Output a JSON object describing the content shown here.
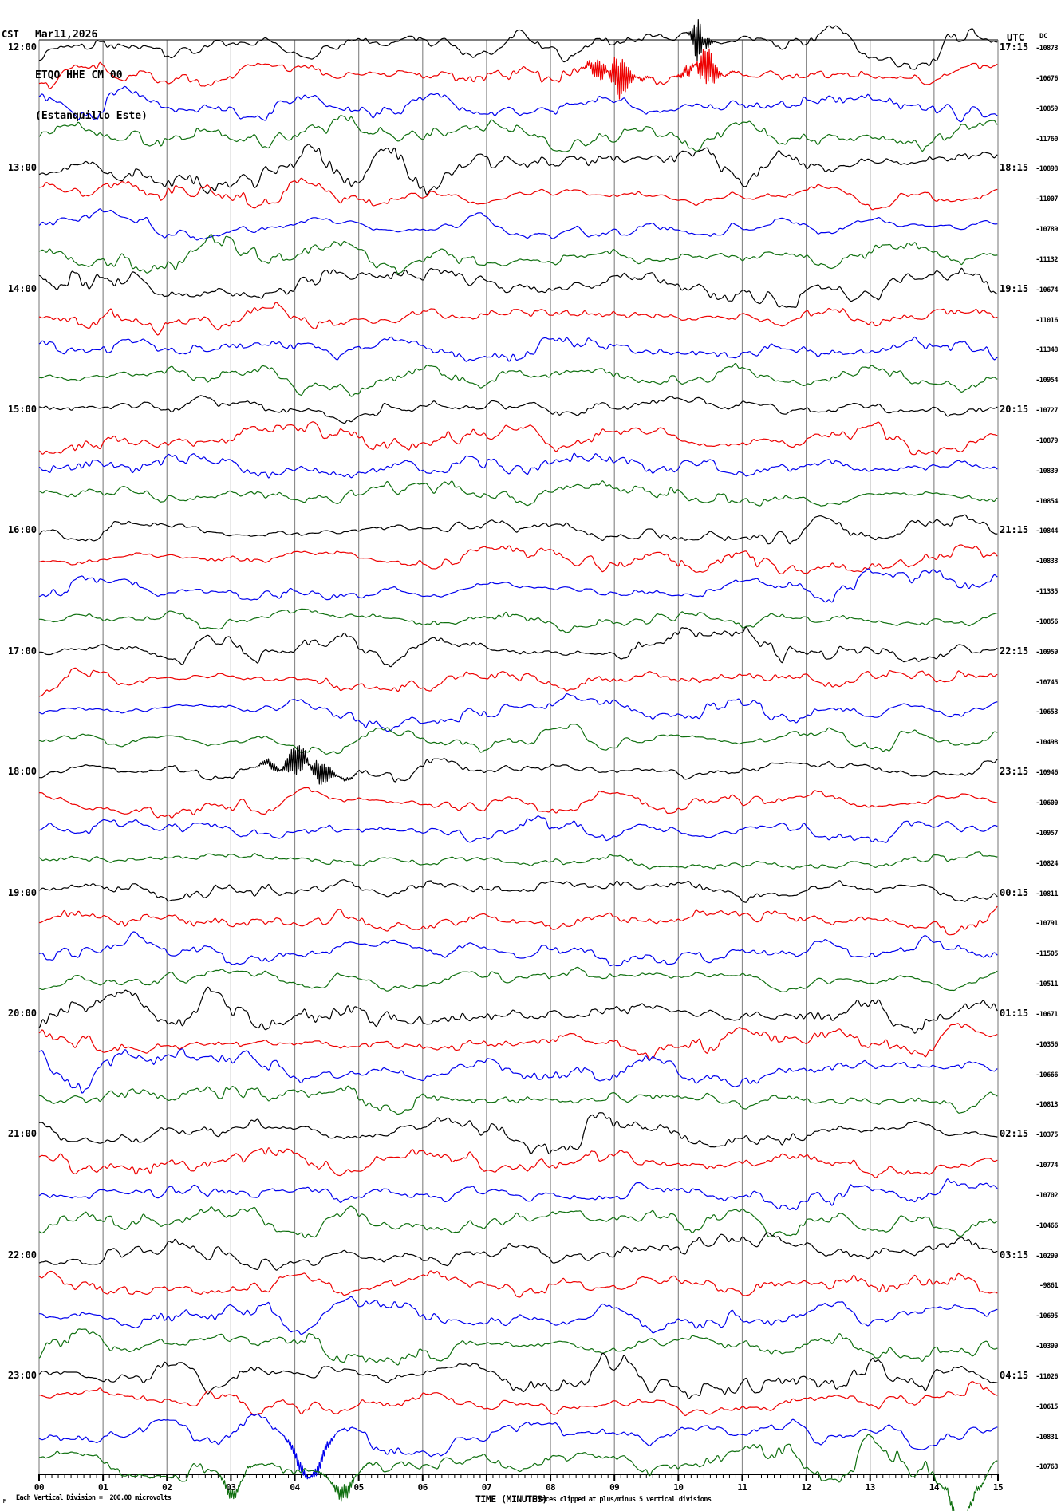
{
  "header": {
    "date": "Mar11,2026",
    "station_code": "ETQO HHE CM 00",
    "station_name": "(Estanquillo Este)",
    "left_timezone": "CST",
    "right_timezone": "UTC",
    "dc_column_label": "DC"
  },
  "footer": {
    "marker_glyph": "M",
    "scale_note": "Each Vertical Division =  200.00 microvolts",
    "axis_title": "TIME (MINUTES)",
    "clip_note": "Traces clipped at plus/minus 5 vertical divisions"
  },
  "colors": {
    "black": "#000000",
    "red": "#ee0000",
    "blue": "#0000ee",
    "green": "#107010",
    "grid": "#8c8c8c",
    "axis": "#000000"
  },
  "chart_data": {
    "type": "line",
    "subtype": "helicorder-seismogram",
    "title": "ETQO HHE CM 00 (Estanquillo Este) Mar11,2026",
    "xlabel": "TIME (MINUTES)",
    "x_range_minutes": [
      0,
      15
    ],
    "minutes_per_row": 15,
    "x_ticks": [
      "00",
      "01",
      "02",
      "03",
      "04",
      "05",
      "06",
      "07",
      "08",
      "09",
      "10",
      "11",
      "12",
      "13",
      "14",
      "15"
    ],
    "grid": "vertical-minute-lines",
    "trace_color_cycle": [
      "black",
      "red",
      "blue",
      "green"
    ],
    "rows": [
      {
        "cst": "12:00",
        "utc": "17:15",
        "dc": "-10873",
        "color": "black",
        "amp": 1.0
      },
      {
        "cst": "",
        "utc": "",
        "dc": "-10676",
        "color": "red",
        "amp": 1.0
      },
      {
        "cst": "",
        "utc": "",
        "dc": "-10859",
        "color": "blue",
        "amp": 1.0
      },
      {
        "cst": "",
        "utc": "",
        "dc": "-11760",
        "color": "green",
        "amp": 1.1
      },
      {
        "cst": "13:00",
        "utc": "18:15",
        "dc": "-10898",
        "color": "black",
        "amp": 1.35
      },
      {
        "cst": "",
        "utc": "",
        "dc": "-11007",
        "color": "red",
        "amp": 1.2
      },
      {
        "cst": "",
        "utc": "",
        "dc": "-10789",
        "color": "blue",
        "amp": 1.0
      },
      {
        "cst": "",
        "utc": "",
        "dc": "-11132",
        "color": "green",
        "amp": 1.1
      },
      {
        "cst": "14:00",
        "utc": "19:15",
        "dc": "-10674",
        "color": "black",
        "amp": 1.45
      },
      {
        "cst": "",
        "utc": "",
        "dc": "-11016",
        "color": "red",
        "amp": 1.0
      },
      {
        "cst": "",
        "utc": "",
        "dc": "-11348",
        "color": "blue",
        "amp": 0.9
      },
      {
        "cst": "",
        "utc": "",
        "dc": "-10954",
        "color": "green",
        "amp": 0.9
      },
      {
        "cst": "15:00",
        "utc": "20:15",
        "dc": "-10727",
        "color": "black",
        "amp": 1.1
      },
      {
        "cst": "",
        "utc": "",
        "dc": "-10879",
        "color": "red",
        "amp": 1.0
      },
      {
        "cst": "",
        "utc": "",
        "dc": "-10839",
        "color": "blue",
        "amp": 0.9
      },
      {
        "cst": "",
        "utc": "",
        "dc": "-10854",
        "color": "green",
        "amp": 0.9
      },
      {
        "cst": "16:00",
        "utc": "21:15",
        "dc": "-10844",
        "color": "black",
        "amp": 1.0
      },
      {
        "cst": "",
        "utc": "",
        "dc": "-10833",
        "color": "red",
        "amp": 0.9
      },
      {
        "cst": "",
        "utc": "",
        "dc": "-11335",
        "color": "blue",
        "amp": 1.0
      },
      {
        "cst": "",
        "utc": "",
        "dc": "-10856",
        "color": "green",
        "amp": 1.0
      },
      {
        "cst": "17:00",
        "utc": "22:15",
        "dc": "-10959",
        "color": "black",
        "amp": 1.1
      },
      {
        "cst": "",
        "utc": "",
        "dc": "-10745",
        "color": "red",
        "amp": 0.85
      },
      {
        "cst": "",
        "utc": "",
        "dc": "-10653",
        "color": "blue",
        "amp": 0.9
      },
      {
        "cst": "",
        "utc": "",
        "dc": "-10498",
        "color": "green",
        "amp": 0.9
      },
      {
        "cst": "18:00",
        "utc": "23:15",
        "dc": "-10946",
        "color": "black",
        "amp": 1.25
      },
      {
        "cst": "",
        "utc": "",
        "dc": "-10600",
        "color": "red",
        "amp": 1.0
      },
      {
        "cst": "",
        "utc": "",
        "dc": "-10957",
        "color": "blue",
        "amp": 0.85
      },
      {
        "cst": "",
        "utc": "",
        "dc": "-10824",
        "color": "green",
        "amp": 0.85
      },
      {
        "cst": "19:00",
        "utc": "00:15",
        "dc": "-10811",
        "color": "black",
        "amp": 1.0
      },
      {
        "cst": "",
        "utc": "",
        "dc": "-10791",
        "color": "red",
        "amp": 1.0
      },
      {
        "cst": "",
        "utc": "",
        "dc": "-11505",
        "color": "blue",
        "amp": 1.1
      },
      {
        "cst": "",
        "utc": "",
        "dc": "-10511",
        "color": "green",
        "amp": 1.0
      },
      {
        "cst": "20:00",
        "utc": "01:15",
        "dc": "-10671",
        "color": "black",
        "amp": 1.15
      },
      {
        "cst": "",
        "utc": "",
        "dc": "-10356",
        "color": "red",
        "amp": 1.0
      },
      {
        "cst": "",
        "utc": "",
        "dc": "-10666",
        "color": "blue",
        "amp": 1.0
      },
      {
        "cst": "",
        "utc": "",
        "dc": "-10813",
        "color": "green",
        "amp": 1.0
      },
      {
        "cst": "21:00",
        "utc": "02:15",
        "dc": "-10375",
        "color": "black",
        "amp": 1.1
      },
      {
        "cst": "",
        "utc": "",
        "dc": "-10774",
        "color": "red",
        "amp": 1.1
      },
      {
        "cst": "",
        "utc": "",
        "dc": "-10702",
        "color": "blue",
        "amp": 1.1
      },
      {
        "cst": "",
        "utc": "",
        "dc": "-10466",
        "color": "green",
        "amp": 1.1
      },
      {
        "cst": "22:00",
        "utc": "03:15",
        "dc": "-10299",
        "color": "black",
        "amp": 1.1
      },
      {
        "cst": "",
        "utc": "",
        "dc": "-9861",
        "color": "red",
        "amp": 1.1
      },
      {
        "cst": "",
        "utc": "",
        "dc": "-10695",
        "color": "blue",
        "amp": 1.0
      },
      {
        "cst": "",
        "utc": "",
        "dc": "-10399",
        "color": "green",
        "amp": 1.1
      },
      {
        "cst": "23:00",
        "utc": "04:15",
        "dc": "-11026",
        "color": "black",
        "amp": 1.15
      },
      {
        "cst": "",
        "utc": "",
        "dc": "-10615",
        "color": "red",
        "amp": 1.1
      },
      {
        "cst": "",
        "utc": "",
        "dc": "-10831",
        "color": "blue",
        "amp": 1.1
      },
      {
        "cst": "",
        "utc": "",
        "dc": "-10763",
        "color": "green",
        "amp": 1.2
      }
    ],
    "events": [
      {
        "row": 0,
        "minute": 10.35,
        "width": 0.1,
        "osc": 1.55,
        "bias": 0.15
      },
      {
        "row": 1,
        "minute": 9.0,
        "width": 0.3,
        "osc": 0.75,
        "bias": 0
      },
      {
        "row": 1,
        "minute": 10.4,
        "width": 0.25,
        "osc": 0.65,
        "bias": 0
      },
      {
        "row": 24,
        "minute": 4.15,
        "width": 0.45,
        "osc": 0.55,
        "bias": 0
      },
      {
        "row": 46,
        "minute": 4.25,
        "width": 0.35,
        "osc": 0.25,
        "bias": 1.3
      },
      {
        "row": 47,
        "minute": 3.05,
        "width": 0.2,
        "osc": 0.2,
        "bias": 1.0
      },
      {
        "row": 47,
        "minute": 4.75,
        "width": 0.25,
        "osc": 0.25,
        "bias": 1.2
      },
      {
        "row": 47,
        "minute": 14.45,
        "width": 0.25,
        "osc": 0.2,
        "bias": 1.3
      }
    ],
    "clip_divisions": 5,
    "microvolts_per_division": 200.0
  }
}
